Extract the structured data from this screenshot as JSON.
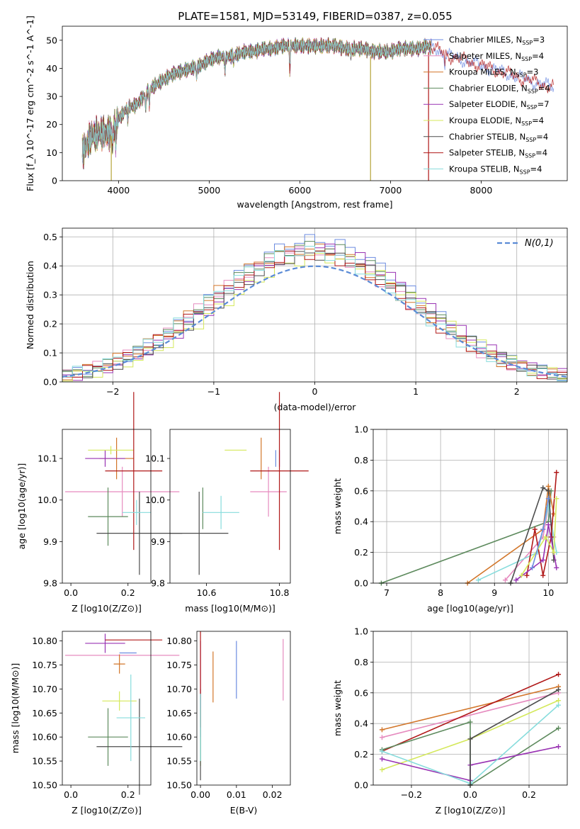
{
  "title": "PLATE=1581, MJD=53149, FIBERID=0387, z=0.055",
  "colors": {
    "Chabrier MILES": "#6b8be0",
    "Salpeter MILES": "#e68bbf",
    "Kroupa MILES": "#d2762a",
    "Chabrier ELODIE": "#5d8a5d",
    "Salpeter ELODIE": "#9933b3",
    "Kroupa ELODIE": "#d4e85a",
    "Chabrier STELIB": "#4d4d4d",
    "Salpeter STELIB": "#b01818",
    "Kroupa STELIB": "#86dcdc"
  },
  "chart_data": [
    {
      "id": "spectrum",
      "type": "line",
      "title": "PLATE=1581, MJD=53149, FIBERID=0387, z=0.055",
      "xlabel": "wavelength [Angstrom, rest frame]",
      "ylabel": "Flux [f_λ 10^-17 erg cm^-2 s^-1 A^-1]",
      "xlim": [
        3380,
        8950
      ],
      "ylim": [
        0,
        55
      ],
      "xticks": [
        "4000",
        "5000",
        "6000",
        "7000",
        "8000"
      ],
      "yticks": [
        "0",
        "10",
        "20",
        "30",
        "40",
        "50"
      ],
      "grid": false,
      "legend": "top-right",
      "legend_entries": [
        {
          "base": "Chabrier MILES, N",
          "sub": "SSP",
          "tail": "=3"
        },
        {
          "base": "Salpeter MILES, N",
          "sub": "SSP",
          "tail": "=4"
        },
        {
          "base": "Kroupa MILES, N",
          "sub": "SSP",
          "tail": "=3"
        },
        {
          "base": "Chabrier ELODIE, N",
          "sub": "SSP",
          "tail": "=4"
        },
        {
          "base": "Salpeter ELODIE, N",
          "sub": "SSP",
          "tail": "=7"
        },
        {
          "base": "Kroupa ELODIE, N",
          "sub": "SSP",
          "tail": "=4"
        },
        {
          "base": "Chabrier STELIB, N",
          "sub": "SSP",
          "tail": "=4"
        },
        {
          "base": "Salpeter STELIB, N",
          "sub": "SSP",
          "tail": "=4"
        },
        {
          "base": "Kroupa STELIB, N",
          "sub": "SSP",
          "tail": "=4"
        }
      ],
      "continuum": [
        [
          3600,
          10
        ],
        [
          3700,
          16
        ],
        [
          3800,
          17
        ],
        [
          3900,
          17
        ],
        [
          4000,
          22
        ],
        [
          4100,
          26
        ],
        [
          4200,
          27
        ],
        [
          4300,
          31
        ],
        [
          4400,
          34
        ],
        [
          4500,
          36
        ],
        [
          4600,
          38
        ],
        [
          4700,
          39
        ],
        [
          4800,
          40
        ],
        [
          4900,
          41
        ],
        [
          5000,
          43
        ],
        [
          5100,
          44
        ],
        [
          5200,
          44
        ],
        [
          5300,
          45
        ],
        [
          5400,
          46
        ],
        [
          5500,
          46
        ],
        [
          5600,
          47
        ],
        [
          5700,
          47
        ],
        [
          5800,
          48
        ],
        [
          5900,
          48
        ],
        [
          6000,
          48
        ],
        [
          6100,
          48
        ],
        [
          6200,
          48
        ],
        [
          6300,
          48
        ],
        [
          6400,
          48
        ],
        [
          6500,
          47
        ],
        [
          6600,
          47
        ],
        [
          6700,
          47
        ],
        [
          6800,
          46
        ],
        [
          6900,
          46
        ],
        [
          7000,
          46
        ],
        [
          7100,
          47
        ],
        [
          7200,
          47
        ],
        [
          7300,
          47
        ],
        [
          7400,
          48
        ],
        [
          7500,
          47
        ],
        [
          7600,
          45
        ],
        [
          7700,
          44
        ],
        [
          7800,
          43
        ],
        [
          7900,
          42
        ],
        [
          8000,
          41
        ],
        [
          8100,
          40
        ],
        [
          8200,
          39
        ],
        [
          8300,
          38
        ],
        [
          8400,
          37
        ],
        [
          8500,
          36
        ],
        [
          8600,
          35
        ],
        [
          8700,
          34
        ],
        [
          8800,
          33.5
        ]
      ],
      "absorption_lines": [
        [
          3934,
          8
        ],
        [
          3968,
          7
        ],
        [
          4101,
          4
        ],
        [
          4300,
          6
        ],
        [
          4340,
          5
        ],
        [
          4861,
          4
        ],
        [
          5175,
          5
        ],
        [
          5270,
          3
        ],
        [
          5890,
          9
        ],
        [
          6563,
          3
        ],
        [
          7600,
          4
        ]
      ],
      "spikes": [
        {
          "x": 3920,
          "y": 0
        },
        {
          "x": 6780,
          "y": 0
        },
        {
          "x": 7420,
          "y": 0
        }
      ]
    },
    {
      "id": "residuals",
      "type": "step-histogram",
      "xlabel": "(data-model)/error",
      "ylabel": "Normed distribution",
      "xlim": [
        -2.5,
        2.5
      ],
      "ylim": [
        0,
        0.53
      ],
      "xticks": [
        "−2",
        "−1",
        "0",
        "1",
        "2"
      ],
      "yticks": [
        "0.0",
        "0.1",
        "0.2",
        "0.3",
        "0.4",
        "0.5"
      ],
      "grid": true,
      "legend": "top-right",
      "reference_curve": "N(0,1)",
      "bin_width": 0.1,
      "bins": 50,
      "peak_values": [
        0.5,
        0.46,
        0.47,
        0.48,
        0.47,
        0.44,
        0.45,
        0.45,
        0.46
      ]
    },
    {
      "id": "age-vs-Z",
      "type": "errorbar",
      "xlabel": "Z [log10(Z/Z⊙)]",
      "ylabel": "age [log10(age/yr)]",
      "xlim": [
        -0.03,
        0.28
      ],
      "ylim": [
        9.8,
        10.17
      ],
      "xticks": [
        "0.0",
        "0.2"
      ],
      "yticks": [
        "9.8",
        "9.9",
        "10.0",
        "10.1"
      ],
      "points": [
        {
          "m": "Chabrier MILES",
          "x": 0.18,
          "xerr": 0.0,
          "y": 9.98,
          "yerr": 0.0
        },
        {
          "m": "Salpeter MILES",
          "x": 0.18,
          "xerr": 0.2,
          "y": 10.02,
          "yerr": 0.06
        },
        {
          "m": "Kroupa MILES",
          "x": 0.16,
          "xerr": 0.06,
          "y": 10.1,
          "yerr": 0.05
        },
        {
          "m": "Chabrier ELODIE",
          "x": 0.13,
          "xerr": 0.07,
          "y": 9.96,
          "yerr": 0.07
        },
        {
          "m": "Salpeter ELODIE",
          "x": 0.12,
          "xerr": 0.07,
          "y": 10.1,
          "yerr": 0.02
        },
        {
          "m": "Kroupa ELODIE",
          "x": 0.14,
          "xerr": 0.08,
          "y": 10.12,
          "yerr": 0.01
        },
        {
          "m": "Chabrier STELIB",
          "x": 0.24,
          "xerr": 0.15,
          "y": 9.92,
          "yerr": 0.1
        },
        {
          "m": "Salpeter STELIB",
          "x": 0.22,
          "xerr": 0.1,
          "y": 10.07,
          "yerr": 0.19
        },
        {
          "m": "Kroupa STELIB",
          "x": 0.23,
          "xerr": 0.05,
          "y": 9.97,
          "yerr": 0.03
        }
      ]
    },
    {
      "id": "age-vs-mass",
      "type": "errorbar",
      "xlabel": "mass [log10(M/M⊙)]",
      "ylabel": "",
      "xlim": [
        10.5,
        10.83
      ],
      "ylim": [
        9.8,
        10.17
      ],
      "xticks": [
        "10.6",
        "10.8"
      ],
      "yticks": [
        "9.8",
        "9.9",
        "10.0",
        "10.1"
      ],
      "points": [
        {
          "m": "Chabrier MILES",
          "x": 10.79,
          "xerr": 0.0,
          "y": 10.1,
          "yerr": 0.02
        },
        {
          "m": "Salpeter MILES",
          "x": 10.77,
          "xerr": 0.05,
          "y": 10.02,
          "yerr": 0.06
        },
        {
          "m": "Kroupa MILES",
          "x": 10.75,
          "xerr": 0.0,
          "y": 10.1,
          "yerr": 0.05
        },
        {
          "m": "Chabrier ELODIE",
          "x": 10.59,
          "xerr": 0.0,
          "y": 9.98,
          "yerr": 0.05
        },
        {
          "m": "Salpeter ELODIE",
          "x": 10.8,
          "xerr": 0.0,
          "y": 10.1,
          "yerr": 0.02
        },
        {
          "m": "Kroupa ELODIE",
          "x": 10.68,
          "xerr": 0.03,
          "y": 10.12,
          "yerr": 0.0
        },
        {
          "m": "Chabrier STELIB",
          "x": 10.58,
          "xerr": 0.08,
          "y": 9.92,
          "yerr": 0.1
        },
        {
          "m": "Salpeter STELIB",
          "x": 10.8,
          "xerr": 0.08,
          "y": 10.07,
          "yerr": 0.19
        },
        {
          "m": "Kroupa STELIB",
          "x": 10.64,
          "xerr": 0.05,
          "y": 9.97,
          "yerr": 0.04
        }
      ]
    },
    {
      "id": "weights-vs-age",
      "type": "line",
      "xlabel": "age [log10(age/yr)]",
      "ylabel": "mass weight",
      "xlim": [
        6.75,
        10.35
      ],
      "ylim": [
        0,
        1.0
      ],
      "xticks": [
        "7",
        "8",
        "9",
        "10"
      ],
      "yticks": [
        "0.0",
        "0.2",
        "0.4",
        "0.6",
        "0.8",
        "1.0"
      ],
      "grid": true,
      "series": [
        {
          "m": "Chabrier ELODIE",
          "pts": [
            [
              6.9,
              0.0
            ],
            [
              10.0,
              0.4
            ],
            [
              10.05,
              0.6
            ]
          ]
        },
        {
          "m": "Kroupa MILES",
          "pts": [
            [
              8.5,
              0.0
            ],
            [
              9.9,
              0.35
            ],
            [
              10.0,
              0.63
            ],
            [
              10.1,
              0.45
            ]
          ]
        },
        {
          "m": "Salpeter MILES",
          "pts": [
            [
              9.2,
              0.02
            ],
            [
              9.9,
              0.3
            ],
            [
              10.0,
              0.5
            ],
            [
              10.1,
              0.3
            ]
          ]
        },
        {
          "m": "Kroupa STELIB",
          "pts": [
            [
              8.7,
              0.02
            ],
            [
              9.8,
              0.2
            ],
            [
              10.0,
              0.5
            ],
            [
              10.15,
              0.2
            ]
          ]
        },
        {
          "m": "Chabrier STELIB",
          "pts": [
            [
              9.3,
              0.0
            ],
            [
              9.9,
              0.62
            ],
            [
              10.0,
              0.6
            ],
            [
              10.1,
              0.15
            ]
          ]
        },
        {
          "m": "Salpeter STELIB",
          "pts": [
            [
              9.6,
              0.05
            ],
            [
              9.75,
              0.35
            ],
            [
              9.9,
              0.05
            ],
            [
              10.05,
              0.3
            ],
            [
              10.15,
              0.72
            ]
          ]
        },
        {
          "m": "Salpeter ELODIE",
          "pts": [
            [
              9.4,
              0.02
            ],
            [
              9.9,
              0.15
            ],
            [
              10.0,
              0.38
            ],
            [
              10.1,
              0.2
            ],
            [
              10.15,
              0.1
            ]
          ]
        },
        {
          "m": "Kroupa ELODIE",
          "pts": [
            [
              9.5,
              0.05
            ],
            [
              9.95,
              0.3
            ],
            [
              10.1,
              0.2
            ],
            [
              10.15,
              0.55
            ]
          ]
        },
        {
          "m": "Chabrier MILES",
          "pts": [
            [
              9.7,
              0.1
            ],
            [
              9.9,
              0.35
            ],
            [
              10.0,
              0.55
            ]
          ]
        }
      ]
    },
    {
      "id": "mass-vs-Z",
      "type": "errorbar",
      "xlabel": "Z [log10(Z/Z⊙)]",
      "ylabel": "mass [log10(M/M⊙)]",
      "xlim": [
        -0.03,
        0.28
      ],
      "ylim": [
        10.5,
        10.82
      ],
      "xticks": [
        "0.0",
        "0.2"
      ],
      "yticks": [
        "10.50",
        "10.55",
        "10.60",
        "10.65",
        "10.70",
        "10.75",
        "10.80"
      ],
      "points": [
        {
          "m": "Chabrier MILES",
          "x": 0.2,
          "xerr": 0.03,
          "y": 10.775,
          "yerr": 0.0
        },
        {
          "m": "Salpeter MILES",
          "x": 0.18,
          "xerr": 0.2,
          "y": 10.77,
          "yerr": 0.0
        },
        {
          "m": "Kroupa MILES",
          "x": 0.17,
          "xerr": 0.02,
          "y": 10.752,
          "yerr": 0.02
        },
        {
          "m": "Chabrier ELODIE",
          "x": 0.13,
          "xerr": 0.07,
          "y": 10.6,
          "yerr": 0.06
        },
        {
          "m": "Salpeter ELODIE",
          "x": 0.12,
          "xerr": 0.07,
          "y": 10.795,
          "yerr": 0.02
        },
        {
          "m": "Kroupa ELODIE",
          "x": 0.17,
          "xerr": 0.06,
          "y": 10.675,
          "yerr": 0.02
        },
        {
          "m": "Chabrier STELIB",
          "x": 0.24,
          "xerr": 0.15,
          "y": 10.58,
          "yerr": 0.1
        },
        {
          "m": "Salpeter STELIB",
          "x": 0.22,
          "xerr": 0.1,
          "y": 10.802,
          "yerr": 0.0
        },
        {
          "m": "Kroupa STELIB",
          "x": 0.21,
          "xerr": 0.05,
          "y": 10.64,
          "yerr": 0.09
        }
      ]
    },
    {
      "id": "mass-vs-EBV",
      "type": "errorbar",
      "xlabel": "E(B-V)",
      "ylabel": "",
      "xlim": [
        -0.001,
        0.025
      ],
      "ylim": [
        10.5,
        10.82
      ],
      "xticks": [
        "0.00",
        "0.01",
        "0.02"
      ],
      "yticks": [
        "10.50",
        "10.55",
        "10.60",
        "10.65",
        "10.70",
        "10.75",
        "10.80"
      ],
      "points": [
        {
          "m": "Chabrier MILES",
          "x": 0.01,
          "xerr": 0.0,
          "y": 10.74,
          "yerr": 0.06
        },
        {
          "m": "Salpeter MILES",
          "x": 0.023,
          "xerr": 0.0,
          "y": 10.74,
          "yerr": 0.064
        },
        {
          "m": "Kroupa MILES",
          "x": 0.0035,
          "xerr": 0.0,
          "y": 10.725,
          "yerr": 0.053
        },
        {
          "m": "Chabrier ELODIE",
          "x": 0.0,
          "xerr": 0.0,
          "y": 10.62,
          "yerr": 0.08
        },
        {
          "m": "Salpeter ELODIE",
          "x": 0.0,
          "xerr": 0.0,
          "y": 10.7,
          "yerr": 0.1
        },
        {
          "m": "Kroupa ELODIE",
          "x": 0.0,
          "xerr": 0.0,
          "y": 10.6,
          "yerr": 0.06
        },
        {
          "m": "Chabrier STELIB",
          "x": 0.0,
          "xerr": 0.0,
          "y": 10.6,
          "yerr": 0.09
        },
        {
          "m": "Salpeter STELIB",
          "x": 0.0,
          "xerr": 0.0,
          "y": 10.72,
          "yerr": 0.1
        },
        {
          "m": "Kroupa STELIB",
          "x": 0.0,
          "xerr": 0.0,
          "y": 10.62,
          "yerr": 0.07
        }
      ]
    },
    {
      "id": "weights-vs-Z",
      "type": "line",
      "xlabel": "Z [log10(Z/Z⊙)]",
      "ylabel": "mass weight",
      "xlim": [
        -0.33,
        0.33
      ],
      "ylim": [
        0,
        1.0
      ],
      "xticks": [
        "−0.2",
        "0.0",
        "0.2"
      ],
      "yticks": [
        "0.0",
        "0.2",
        "0.4",
        "0.6",
        "0.8",
        "1.0"
      ],
      "grid": true,
      "series": [
        {
          "m": "Kroupa MILES",
          "pts": [
            [
              -0.3,
              0.36
            ],
            [
              0.3,
              0.64
            ]
          ]
        },
        {
          "m": "Salpeter MILES",
          "pts": [
            [
              -0.3,
              0.31
            ],
            [
              0.3,
              0.6
            ]
          ]
        },
        {
          "m": "Salpeter STELIB",
          "pts": [
            [
              -0.3,
              0.22
            ],
            [
              0.3,
              0.72
            ]
          ]
        },
        {
          "m": "Chabrier ELODIE",
          "pts": [
            [
              -0.3,
              0.23
            ],
            [
              0.0,
              0.41
            ],
            [
              0.0,
              0.0
            ],
            [
              0.3,
              0.37
            ]
          ]
        },
        {
          "m": "Kroupa ELODIE",
          "pts": [
            [
              -0.3,
              0.1
            ],
            [
              0.0,
              0.3
            ],
            [
              0.3,
              0.55
            ]
          ]
        },
        {
          "m": "Salpeter ELODIE",
          "pts": [
            [
              -0.3,
              0.17
            ],
            [
              0.0,
              0.03
            ],
            [
              0.0,
              0.13
            ],
            [
              0.3,
              0.25
            ]
          ]
        },
        {
          "m": "Kroupa STELIB",
          "pts": [
            [
              -0.3,
              0.22
            ],
            [
              0.0,
              0.01
            ],
            [
              0.3,
              0.52
            ]
          ]
        },
        {
          "m": "Chabrier STELIB",
          "pts": [
            [
              0.0,
              0.0
            ],
            [
              0.0,
              0.3
            ],
            [
              0.3,
              0.62
            ]
          ]
        }
      ]
    }
  ]
}
